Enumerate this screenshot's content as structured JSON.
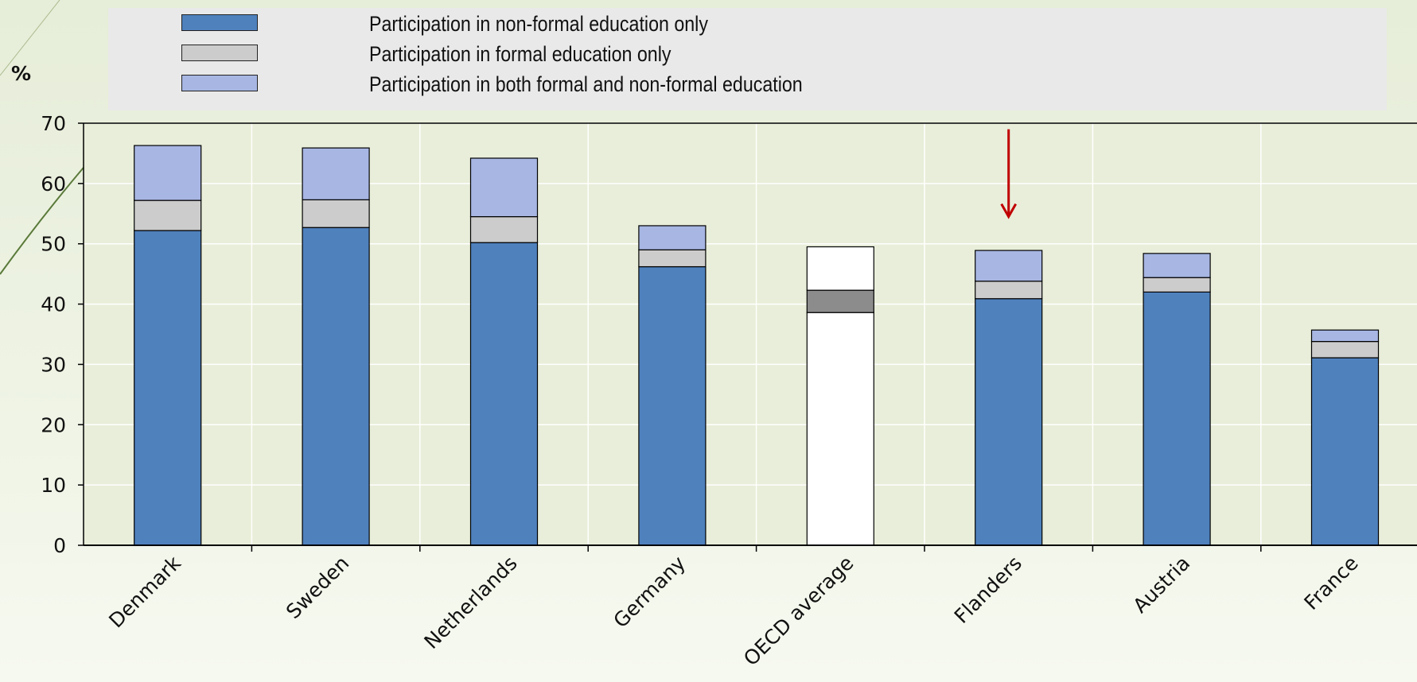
{
  "chart_data": {
    "type": "bar",
    "stacked": true,
    "unit_label": "%",
    "title": "",
    "xlabel": "",
    "ylabel": "%",
    "ylim": [
      0,
      70
    ],
    "yticks": [
      0,
      10,
      20,
      30,
      40,
      50,
      60,
      70
    ],
    "grid": true,
    "legend_position": "top",
    "categories": [
      "Denmark",
      "Sweden",
      "Netherlands",
      "Germany",
      "OECD average",
      "Flanders",
      "Austria",
      "France"
    ],
    "series": [
      {
        "name": "Participation in non-formal education only",
        "color": "#4f81bd",
        "highlight_color": "#ffffff",
        "values": [
          52.2,
          52.7,
          50.2,
          46.2,
          38.6,
          40.9,
          42.0,
          31.1
        ]
      },
      {
        "name": "Participation in formal education only",
        "color": "#cccccc",
        "highlight_color": "#8c8c8c",
        "values": [
          5.0,
          4.6,
          4.3,
          2.8,
          3.7,
          2.9,
          2.4,
          2.7
        ]
      },
      {
        "name": "Participation in both formal and non-formal education",
        "color": "#a7b6e3",
        "highlight_color": "#ffffff",
        "values": [
          9.1,
          8.6,
          9.7,
          4.0,
          7.2,
          5.1,
          4.0,
          1.9
        ]
      }
    ],
    "highlight_category": "OECD average",
    "annotation": {
      "type": "arrow",
      "category": "Flanders",
      "color": "#c00000"
    },
    "plot_background": "#e8eed9",
    "gridline_color": "#ffffff"
  }
}
